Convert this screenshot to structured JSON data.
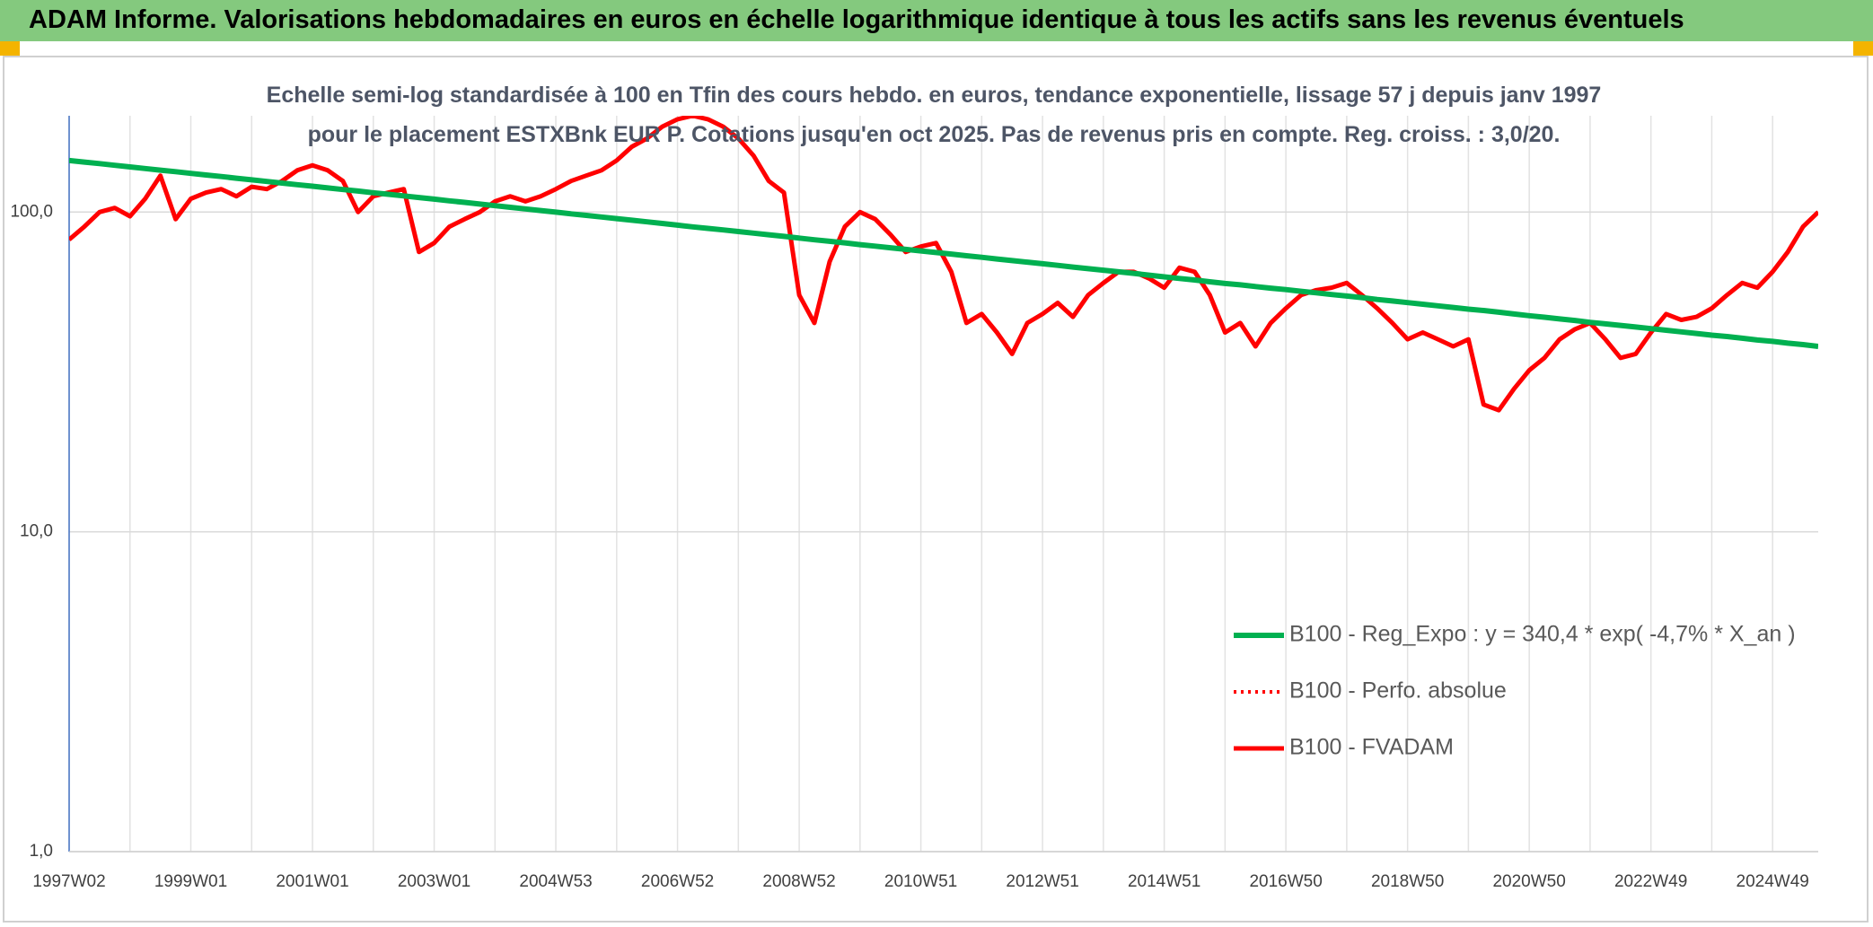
{
  "header": {
    "title": "ADAM Informe. Valorisations hebdomadaires en euros en échelle logarithmique identique à tous les actifs sans les revenus éventuels"
  },
  "chart_data": {
    "type": "line",
    "title": "Echelle semi-log standardisée à 100 en Tfin des cours hebdo. en euros, tendance exponentielle, lissage 57 j depuis janv 1997 pour le placement ESTXBnk EUR P. Cotations jusqu'en oct 2025. Pas de revenus pris en compte. Reg. croiss. : 3,0/20.",
    "categories": [
      "1997W02",
      null,
      null,
      null,
      null,
      null,
      null,
      null,
      "1999W01",
      null,
      null,
      null,
      null,
      null,
      null,
      null,
      "2001W01",
      null,
      null,
      null,
      null,
      null,
      null,
      null,
      "2003W01",
      null,
      null,
      null,
      null,
      null,
      null,
      null,
      "2004W53",
      null,
      null,
      null,
      null,
      null,
      null,
      null,
      "2006W52",
      null,
      null,
      null,
      null,
      null,
      null,
      null,
      "2008W52",
      null,
      null,
      null,
      null,
      null,
      null,
      null,
      "2010W51",
      null,
      null,
      null,
      null,
      null,
      null,
      null,
      "2012W51",
      null,
      null,
      null,
      null,
      null,
      null,
      null,
      "2014W51",
      null,
      null,
      null,
      null,
      null,
      null,
      null,
      "2016W50",
      null,
      null,
      null,
      null,
      null,
      null,
      null,
      "2018W50",
      null,
      null,
      null,
      null,
      null,
      null,
      null,
      "2020W50",
      null,
      null,
      null,
      null,
      null,
      null,
      null,
      "2022W49",
      null,
      null,
      null,
      null,
      null,
      null,
      null,
      "2024W49",
      null,
      null,
      null
    ],
    "series": [
      {
        "name": "B100 - Reg_Expo : y = 340,4 * exp( -4,7% *  X_an )",
        "color": "#00b050",
        "style": "solid",
        "width": 6,
        "values": [
          145.0,
          143.3,
          141.7,
          140.0,
          138.4,
          136.8,
          135.2,
          133.7,
          132.1,
          130.6,
          129.1,
          127.6,
          126.1,
          124.6,
          123.2,
          121.8,
          120.4,
          119.0,
          117.6,
          116.3,
          114.9,
          113.6,
          112.3,
          111.0,
          109.7,
          108.4,
          107.2,
          105.9,
          104.7,
          103.5,
          102.3,
          101.1,
          99.9,
          98.7,
          97.6,
          96.5,
          95.4,
          94.3,
          93.2,
          92.1,
          91.0,
          89.9,
          88.9,
          87.9,
          86.9,
          85.9,
          84.9,
          83.9,
          82.9,
          81.9,
          81.0,
          80.1,
          79.1,
          78.2,
          77.3,
          76.4,
          75.6,
          74.7,
          73.9,
          73.0,
          72.2,
          71.3,
          70.5,
          69.7,
          68.9,
          68.1,
          67.3,
          66.5,
          65.8,
          65.0,
          64.3,
          63.5,
          62.7,
          62.0,
          61.3,
          60.5,
          59.8,
          59.2,
          58.5,
          57.8,
          57.2,
          56.5,
          55.9,
          55.2,
          54.6,
          54.0,
          53.3,
          52.7,
          52.1,
          51.5,
          50.9,
          50.3,
          49.7,
          49.2,
          48.6,
          48.0,
          47.4,
          46.9,
          46.3,
          45.8,
          45.2,
          44.7,
          44.2,
          43.7,
          43.2,
          42.7,
          42.2,
          41.7,
          41.2,
          40.8,
          40.3,
          39.8,
          39.4,
          38.9,
          38.5,
          38.0
        ]
      },
      {
        "name": "B100 - Perfo. absolue",
        "color": "#ff0000",
        "style": "dotted",
        "width": 4,
        "values": [
          82,
          90,
          100,
          103,
          97,
          110,
          130,
          95,
          110,
          115,
          118,
          112,
          120,
          118,
          125,
          135,
          140,
          135,
          125,
          100,
          112,
          115,
          118,
          75,
          80,
          90,
          95,
          100,
          108,
          112,
          108,
          112,
          118,
          125,
          130,
          135,
          145,
          160,
          170,
          185,
          195,
          200,
          195,
          185,
          170,
          150,
          125,
          115,
          55,
          45,
          70,
          90,
          100,
          95,
          85,
          75,
          78,
          80,
          65,
          45,
          48,
          42,
          36,
          45,
          48,
          52,
          47,
          55,
          60,
          65,
          65,
          62,
          58,
          67,
          65,
          55,
          42,
          45,
          38,
          45,
          50,
          55,
          57,
          58,
          60,
          55,
          50,
          45,
          40,
          42,
          40,
          38,
          40,
          25,
          24,
          28,
          32,
          35,
          40,
          43,
          45,
          40,
          35,
          36,
          42,
          48,
          46,
          47,
          50,
          55,
          60,
          58,
          65,
          75,
          90,
          100
        ]
      },
      {
        "name": "B100 - FVADAM",
        "color": "#ff0000",
        "style": "solid",
        "width": 5,
        "values": [
          82,
          90,
          100,
          103,
          97,
          110,
          130,
          95,
          110,
          115,
          118,
          112,
          120,
          118,
          125,
          135,
          140,
          135,
          125,
          100,
          112,
          115,
          118,
          75,
          80,
          90,
          95,
          100,
          108,
          112,
          108,
          112,
          118,
          125,
          130,
          135,
          145,
          160,
          170,
          185,
          195,
          200,
          195,
          185,
          170,
          150,
          125,
          115,
          55,
          45,
          70,
          90,
          100,
          95,
          85,
          75,
          78,
          80,
          65,
          45,
          48,
          42,
          36,
          45,
          48,
          52,
          47,
          55,
          60,
          65,
          65,
          62,
          58,
          67,
          65,
          55,
          42,
          45,
          38,
          45,
          50,
          55,
          57,
          58,
          60,
          55,
          50,
          45,
          40,
          42,
          40,
          38,
          40,
          25,
          24,
          28,
          32,
          35,
          40,
          43,
          45,
          40,
          35,
          36,
          42,
          48,
          46,
          47,
          50,
          55,
          60,
          58,
          65,
          75,
          90,
          100
        ]
      }
    ],
    "ylim": [
      1,
      200
    ],
    "log_y": true,
    "yticks": [
      {
        "value": 1,
        "label": "1,0"
      },
      {
        "value": 10,
        "label": "10,0"
      },
      {
        "value": 100,
        "label": "100,0"
      }
    ],
    "grid": true,
    "legend": "lower right"
  }
}
